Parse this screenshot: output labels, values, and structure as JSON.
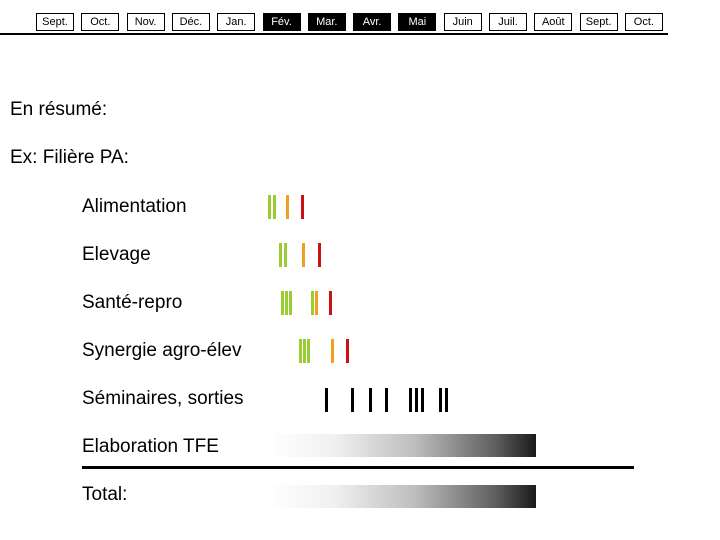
{
  "timeline": {
    "months": [
      {
        "label": "Sept.",
        "dark": false
      },
      {
        "label": "Oct.",
        "dark": false
      },
      {
        "label": "Nov.",
        "dark": false
      },
      {
        "label": "Déc.",
        "dark": false
      },
      {
        "label": "Jan.",
        "dark": false
      },
      {
        "label": "Fév.",
        "dark": true
      },
      {
        "label": "Mar.",
        "dark": true
      },
      {
        "label": "Avr.",
        "dark": true
      },
      {
        "label": "Mai",
        "dark": true
      },
      {
        "label": "Juin",
        "dark": false
      },
      {
        "label": "Juil.",
        "dark": false
      },
      {
        "label": "Août",
        "dark": false
      },
      {
        "label": "Sept.",
        "dark": false
      },
      {
        "label": "Oct.",
        "dark": false
      }
    ]
  },
  "summary": {
    "title": "En résumé:",
    "example": "Ex: Filière PA:"
  },
  "rows": [
    {
      "label": "Alimentation"
    },
    {
      "label": "Elevage"
    },
    {
      "label": "Santé-repro"
    },
    {
      "label": "Synergie agro-élev"
    },
    {
      "label": "Séminaires, sorties"
    },
    {
      "label": "Elaboration TFE"
    },
    {
      "label": "Total:"
    }
  ],
  "colors": {
    "green": "#9acd32",
    "orange": "#f0a020",
    "red": "#cc1111",
    "black": "#000000"
  }
}
